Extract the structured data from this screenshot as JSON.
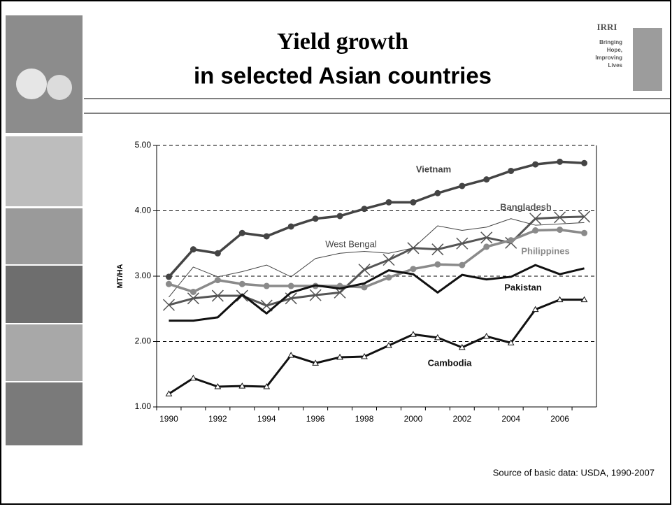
{
  "header": {
    "title_line1": "Yield growth",
    "title_line2": "in selected Asian countries",
    "logo": {
      "name": "IRRI",
      "tagline": [
        "Bringing",
        "Hope,",
        "Improving",
        "Lives"
      ]
    }
  },
  "chart_data": {
    "type": "line",
    "y_label": "MT/HA",
    "categories": [
      1990,
      null,
      1992,
      null,
      1994,
      null,
      1996,
      null,
      1998,
      null,
      2000,
      null,
      2002,
      null,
      2004,
      null,
      2006,
      null
    ],
    "ylim": [
      1,
      5
    ],
    "yticks": [
      {
        "value": 1,
        "label": "1.00"
      },
      {
        "value": 2,
        "label": "2.00"
      },
      {
        "value": 3,
        "label": "3.00"
      },
      {
        "value": 4,
        "label": "4.00"
      },
      {
        "value": 5,
        "label": "5.00"
      }
    ],
    "grid": true,
    "series": [
      {
        "name": "Vietnam",
        "color": "#444444",
        "marker": "circle",
        "width": 3.5,
        "values": [
          2.99,
          3.41,
          3.35,
          3.66,
          3.61,
          3.76,
          3.88,
          3.92,
          4.03,
          4.13,
          4.13,
          4.27,
          4.38,
          4.48,
          4.61,
          4.71,
          4.75,
          4.73
        ]
      },
      {
        "name": "Bangladesh",
        "color": "#555555",
        "marker": "x",
        "width": 3,
        "values": [
          2.56,
          2.66,
          2.7,
          2.7,
          2.55,
          2.66,
          2.71,
          2.75,
          3.1,
          3.25,
          3.43,
          3.41,
          3.5,
          3.59,
          3.51,
          3.88,
          3.9,
          3.91
        ]
      },
      {
        "name": "West Bengal",
        "color": "#444444",
        "marker": "none",
        "width": 1,
        "values": [
          2.68,
          3.14,
          2.99,
          3.07,
          3.17,
          2.99,
          3.27,
          3.35,
          3.38,
          3.35,
          3.43,
          3.77,
          3.7,
          3.75,
          3.88,
          3.78,
          3.8,
          3.82
        ]
      },
      {
        "name": "Philippines",
        "color": "#8a8a8a",
        "marker": "circle",
        "width": 3.5,
        "values": [
          2.88,
          2.76,
          2.94,
          2.88,
          2.85,
          2.85,
          2.85,
          2.85,
          2.83,
          2.98,
          3.11,
          3.18,
          3.17,
          3.45,
          3.55,
          3.7,
          3.71,
          3.66
        ]
      },
      {
        "name": "Pakistan",
        "color": "#111111",
        "marker": "none",
        "width": 3,
        "values": [
          2.32,
          2.32,
          2.37,
          2.72,
          2.43,
          2.75,
          2.86,
          2.81,
          2.89,
          3.09,
          3.03,
          2.75,
          3.02,
          2.95,
          2.99,
          3.17,
          3.03,
          3.12
        ]
      },
      {
        "name": "Cambodia",
        "color": "#111111",
        "marker": "triangle",
        "width": 3,
        "values": [
          1.2,
          1.44,
          1.31,
          1.32,
          1.31,
          1.79,
          1.67,
          1.76,
          1.77,
          1.94,
          2.11,
          2.06,
          1.91,
          2.08,
          1.98,
          2.49,
          2.64,
          2.64
        ]
      }
    ]
  },
  "source": "Source of basic data: USDA, 1990-2007"
}
